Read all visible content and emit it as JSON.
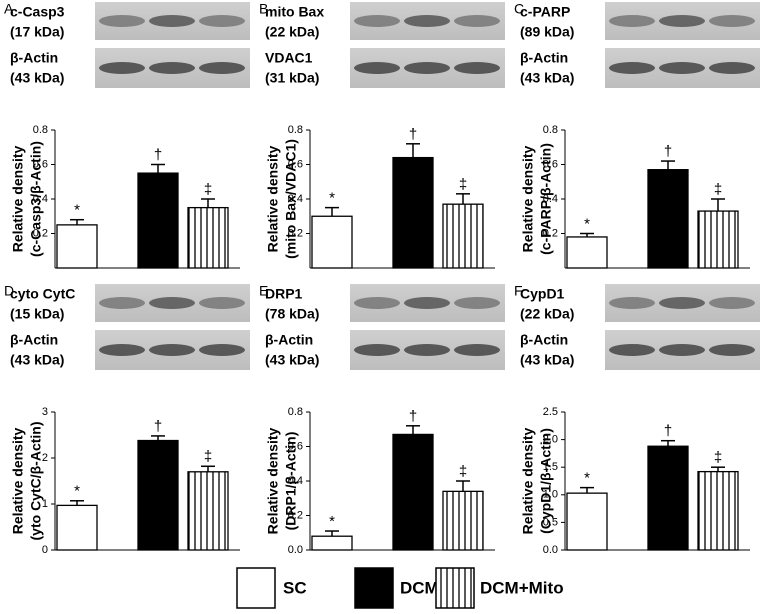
{
  "chart_data": [
    {
      "type": "bar",
      "panel": "A",
      "blots": [
        [
          "c-Casp3",
          "(17 kDa)"
        ],
        [
          "β-Actin",
          "(43 kDa)"
        ]
      ],
      "ylabel": [
        "Relative density",
        "(c-Casp3/β-Actin)"
      ],
      "ylim": [
        0,
        0.8
      ],
      "yticks": [
        0.2,
        0.4,
        0.6,
        0.8
      ],
      "values": [
        0.25,
        0.55,
        0.35
      ],
      "errors": [
        0.03,
        0.05,
        0.05
      ],
      "annotations": [
        "*",
        "†",
        "‡"
      ]
    },
    {
      "type": "bar",
      "panel": "B",
      "blots": [
        [
          "mito Bax",
          "(22 kDa)"
        ],
        [
          "VDAC1",
          "(31 kDa)"
        ]
      ],
      "ylabel": [
        "Relative density",
        "(mito Bax/VDAC1)"
      ],
      "ylim": [
        0,
        0.8
      ],
      "yticks": [
        0.2,
        0.4,
        0.6,
        0.8
      ],
      "values": [
        0.3,
        0.64,
        0.37
      ],
      "errors": [
        0.05,
        0.08,
        0.06
      ],
      "annotations": [
        "*",
        "†",
        "‡"
      ]
    },
    {
      "type": "bar",
      "panel": "C",
      "blots": [
        [
          "c-PARP",
          "(89 kDa)"
        ],
        [
          "β-Actin",
          "(43 kDa)"
        ]
      ],
      "ylabel": [
        "Relative density",
        "(c-PARP/β-Actin)"
      ],
      "ylim": [
        0,
        0.8
      ],
      "yticks": [
        0.2,
        0.4,
        0.6,
        0.8
      ],
      "values": [
        0.18,
        0.57,
        0.33
      ],
      "errors": [
        0.02,
        0.05,
        0.07
      ],
      "annotations": [
        "*",
        "†",
        "‡"
      ]
    },
    {
      "type": "bar",
      "panel": "D",
      "blots": [
        [
          "cyto CytC",
          "(15 kDa)"
        ],
        [
          "β-Actin",
          "(43 kDa)"
        ]
      ],
      "ylabel": [
        "Relative density",
        "(yto CytC/β-Actin)"
      ],
      "ylim": [
        0,
        3
      ],
      "yticks": [
        0,
        1,
        2,
        3
      ],
      "values": [
        0.97,
        2.38,
        1.7
      ],
      "errors": [
        0.1,
        0.1,
        0.12
      ],
      "annotations": [
        "*",
        "†",
        "‡"
      ]
    },
    {
      "type": "bar",
      "panel": "E",
      "blots": [
        [
          "DRP1",
          "(78 kDa)"
        ],
        [
          "β-Actin",
          "(43 kDa)"
        ]
      ],
      "ylabel": [
        "Relative density",
        "(DRP1/β-Actin)"
      ],
      "ylim": [
        0,
        0.8
      ],
      "yticks": [
        {
          "value": 0,
          "label": "0.0"
        },
        0.2,
        0.4,
        0.6,
        0.8
      ],
      "values": [
        0.08,
        0.67,
        0.34
      ],
      "errors": [
        0.03,
        0.05,
        0.06
      ],
      "annotations": [
        "*",
        "†",
        "‡"
      ]
    },
    {
      "type": "bar",
      "panel": "F",
      "blots": [
        [
          "CypD1",
          "(22 kDa)"
        ],
        [
          "β-Actin",
          "(43 kDa)"
        ]
      ],
      "ylabel": [
        "Relative density",
        "(CypD1/β-Actin)"
      ],
      "ylim": [
        0,
        2.5
      ],
      "yticks": [
        {
          "value": 0,
          "label": "0.0"
        },
        0.5,
        {
          "value": 1,
          "label": "1.0"
        },
        1.5,
        {
          "value": 2,
          "label": "2.0"
        },
        2.5
      ],
      "values": [
        1.03,
        1.88,
        1.42
      ],
      "errors": [
        0.1,
        0.1,
        0.08
      ],
      "annotations": [
        "*",
        "†",
        "‡"
      ]
    }
  ],
  "legend": [
    "SC",
    "DCM",
    "DCM+Mito"
  ]
}
